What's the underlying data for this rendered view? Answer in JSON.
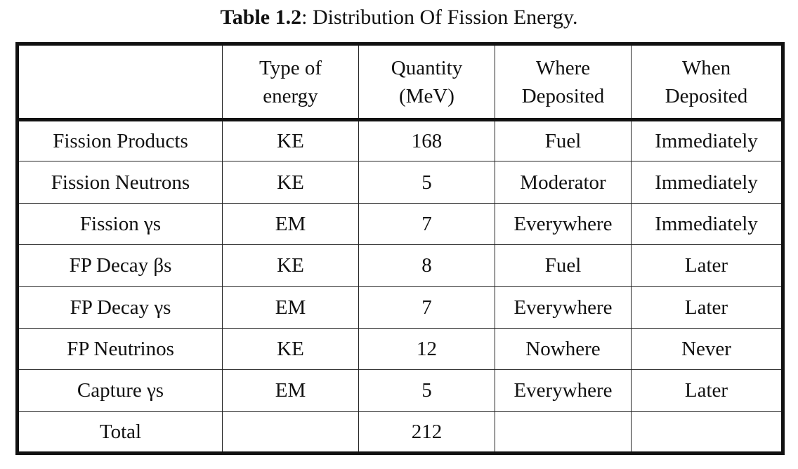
{
  "caption": {
    "label": "Table 1.2",
    "text": ": Distribution Of Fission Energy."
  },
  "table": {
    "headers": [
      {
        "line1": "",
        "line2": ""
      },
      {
        "line1": "Type of",
        "line2": "energy"
      },
      {
        "line1": "Quantity",
        "line2": "(MeV)"
      },
      {
        "line1": "Where",
        "line2": "Deposited"
      },
      {
        "line1": "When",
        "line2": "Deposited"
      }
    ],
    "rows": [
      [
        "Fission Products",
        "KE",
        "168",
        "Fuel",
        "Immediately"
      ],
      [
        "Fission Neutrons",
        "KE",
        "5",
        "Moderator",
        "Immediately"
      ],
      [
        "Fission γs",
        "EM",
        "7",
        "Everywhere",
        "Immediately"
      ],
      [
        "FP Decay βs",
        "KE",
        "8",
        "Fuel",
        "Later"
      ],
      [
        "FP Decay γs",
        "EM",
        "7",
        "Everywhere",
        "Later"
      ],
      [
        "FP Neutrinos",
        "KE",
        "12",
        "Nowhere",
        "Never"
      ],
      [
        "Capture γs",
        "EM",
        "5",
        "Everywhere",
        "Later"
      ],
      [
        "Total",
        "",
        "212",
        "",
        ""
      ]
    ]
  }
}
